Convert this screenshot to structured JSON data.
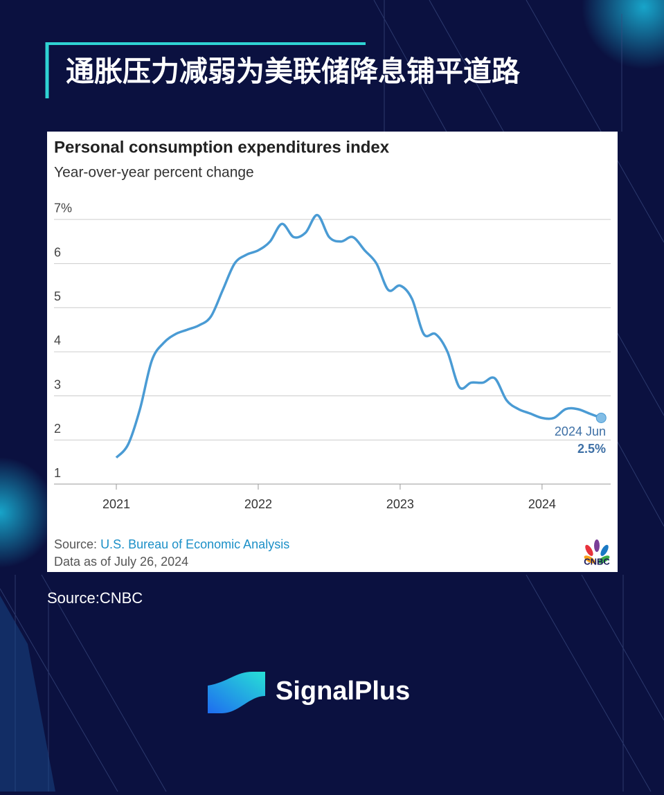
{
  "page": {
    "header_title": "通胀压力减弱为美联储降息铺平道路",
    "source_prefix": "Source:",
    "source_link": "U.S. Bureau of Economic Analysis",
    "data_note": "Data as of July 26, 2024",
    "chart_logo": "CNBC",
    "image_source": "Source:CNBC",
    "brand": "SignalPlus"
  },
  "chart_data": {
    "type": "line",
    "title": "Personal consumption expenditures index",
    "subtitle": "Year-over-year percent change",
    "categories": [
      "2021",
      null,
      null,
      null,
      null,
      null,
      null,
      null,
      null,
      null,
      null,
      null,
      "2022",
      null,
      null,
      null,
      null,
      null,
      null,
      null,
      null,
      null,
      null,
      null,
      "2023",
      null,
      null,
      null,
      null,
      null,
      null,
      null,
      null,
      null,
      null,
      null,
      "2024",
      null,
      null,
      null,
      null,
      null
    ],
    "values": [
      1.6,
      1.9,
      2.7,
      3.8,
      4.2,
      4.4,
      4.5,
      4.6,
      4.8,
      5.4,
      6.0,
      6.2,
      6.3,
      6.5,
      6.9,
      6.6,
      6.7,
      7.1,
      6.6,
      6.5,
      6.6,
      6.3,
      6.0,
      5.4,
      5.5,
      5.2,
      4.4,
      4.4,
      4.0,
      3.2,
      3.3,
      3.3,
      3.4,
      2.9,
      2.7,
      2.6,
      2.5,
      2.5,
      2.7,
      2.7,
      2.6,
      2.5
    ],
    "value_labels": [
      null,
      null,
      null,
      null,
      null,
      null,
      null,
      null,
      null,
      null,
      null,
      null,
      null,
      null,
      null,
      null,
      null,
      null,
      null,
      null,
      null,
      null,
      null,
      null,
      null,
      null,
      null,
      null,
      null,
      null,
      null,
      null,
      null,
      null,
      null,
      null,
      null,
      null,
      null,
      null,
      null,
      "2.5%"
    ],
    "annotation": "2024 Jun",
    "color": "#4a9bd4",
    "ylim": [
      1,
      7.25
    ],
    "yticks": [
      1,
      2,
      3,
      4,
      5,
      6,
      {
        "value": 7,
        "label": "7%"
      }
    ],
    "grid": true
  }
}
